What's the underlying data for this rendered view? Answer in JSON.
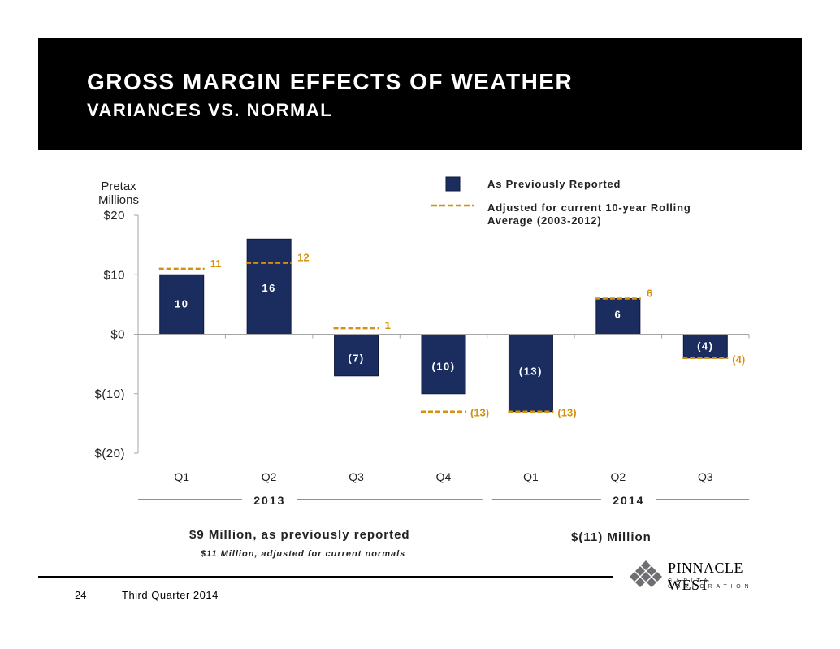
{
  "header": {
    "title": "GROSS MARGIN EFFECTS OF WEATHER",
    "subtitle": "VARIANCES VS. NORMAL"
  },
  "chart_data": {
    "type": "bar",
    "ylabel_line1": "Pretax",
    "ylabel_line2": "Millions",
    "ylim": [
      -20,
      20
    ],
    "yticks": [
      20,
      10,
      0,
      -10,
      -20
    ],
    "ytick_labels": [
      "$20",
      "$10",
      "$0",
      "$(10)",
      "$(20)"
    ],
    "categories": [
      "Q1",
      "Q2",
      "Q3",
      "Q4",
      "Q1",
      "Q2",
      "Q3"
    ],
    "groups": [
      {
        "label": "2013",
        "categories": [
          0,
          1,
          2,
          3
        ]
      },
      {
        "label": "2014",
        "categories": [
          4,
          5,
          6
        ]
      }
    ],
    "series": [
      {
        "name": "As Previously Reported",
        "kind": "bar",
        "values": [
          10,
          16,
          -7,
          -10,
          -13,
          6,
          -4
        ],
        "labels": [
          "10",
          "16",
          "(7)",
          "(10)",
          "(13)",
          "6",
          "(4)"
        ]
      },
      {
        "name": "Adjusted for current 10-year Rolling Average (2003-2012)",
        "kind": "dashed-marker",
        "values": [
          11,
          12,
          1,
          -13,
          -13,
          6,
          -4
        ],
        "labels": [
          "11",
          "12",
          "1",
          "(13)",
          "(13)",
          "6",
          "(4)"
        ]
      }
    ],
    "legend": {
      "item1": "As Previously Reported",
      "item2_line1": "Adjusted for current 10-year Rolling",
      "item2_line2": "Average (2003-2012)"
    },
    "colors": {
      "bar": "#1b2d5e",
      "adjusted": "#d4900e",
      "axis": "#a6a6a6"
    }
  },
  "summary": {
    "line_2013": "$9 Million, as previously reported",
    "line_2013_adjusted": "$11 Million, adjusted for current normals",
    "line_2014": "$(11) Million"
  },
  "footer": {
    "page_number": "24",
    "text": "Third Quarter 2014"
  },
  "logo": {
    "name": "PINNACLE WEST",
    "subtitle": "CAPITAL CORPORATION"
  }
}
